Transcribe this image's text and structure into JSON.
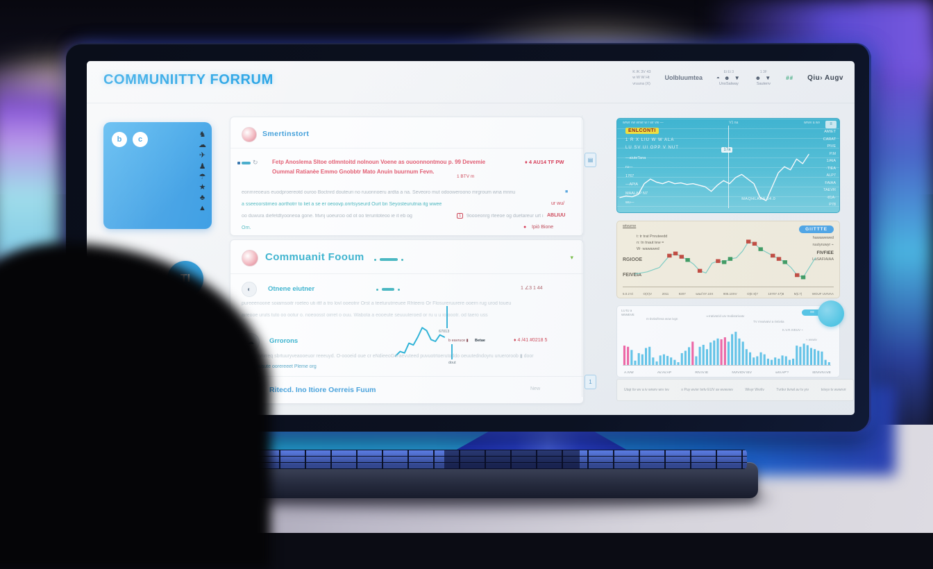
{
  "colors": {
    "brand_blue": "#1b9fe4",
    "sidebar_blue": "#35a3e9",
    "teal_accent": "#45b9c4",
    "alert_red": "#d83a55",
    "chart1_bg": "#45bcd4",
    "bar_cyan": "#62c6ea",
    "bar_pink": "#f265a5"
  },
  "header": {
    "brand": "COMMUNIITTY FORRUM",
    "nav_cluster1": [
      "K /K  3V  43",
      "w  W  W  Ht",
      "vruuna (X)"
    ],
    "nav_item1": "Uolbluumtea",
    "nav_cluster2_top": "Ei  Ei  3",
    "nav_cluster2_icons": "◓ ☻ ▼",
    "nav_cluster2_label": "UnoSalway",
    "nav_cluster3_top": "1  3F",
    "nav_cluster3_icons": "☻ ▼",
    "nav_cluster3_label": "Sautenv",
    "nav_green": "##",
    "nav_user": "Qiu›  Augv"
  },
  "sidebar": {
    "logo_glyphs": [
      "b",
      "c"
    ],
    "icon_column": [
      "♞",
      "☁",
      "✈",
      "♟",
      "☂",
      "★",
      "♣",
      "▲"
    ],
    "avatar_initials": "TI"
  },
  "card1": {
    "section": "Smertinstort",
    "refresh_glyph": "↻",
    "title1": "Fetp Anoslema Sltoe otlmntoitd nolnoun Voene as ouoonnontmou p. 99 Devemie",
    "title2": "Oummal Ratianèe Emmo Gnobbtr Mato Anuin buurnum Fevn.",
    "stat_main": "♦ 4 AU14   TF PW",
    "stat_sub": "1 BTV m",
    "body1": "eonmreoeuis euodproereotd ouroo Boctnrd douteuri no ruuonnoeru ardta a na. Seveoro mut odooweroono mrgroum wna mnnu",
    "body1_icon": "■",
    "body2": "a sseeoorstimeo aorthotrr to liet a se er oeoovp.onrtsyseurd Ourt bn Seyosteurutnia itg wwee",
    "body2_end": "ur wu/",
    "body3a": "oo duwura diefetdtyooneoa gone. fitvrij uoeurcio od ot oo teruntoteoo ie it eb og",
    "body3_badge": "1",
    "body3b": "9oooeonrg rteeoe og duetareur urt i vr",
    "body3_end": "ABLIUU",
    "body4": "Orn.",
    "foot_dot": "●",
    "foot_stat": "Ipiò   Bione"
  },
  "card2": {
    "section": "Commuanit Fooum",
    "caret": "▾",
    "row1": {
      "icon": "◐",
      "title": "Otnene eiutner",
      "stats": "1 ∠3  1 44",
      "body1": "pureeenoone soiamsoitr roeteo uti ittf a tro lovl ooeotnr  Orst a teeturutrreuee  Rhteero Or Flosureruurere  ooern rug urod toueu",
      "body2": "aireooe uruts tuto oo ootur o. noeoosst oirret o ouu. Wabota a  eooeute      seuuuteroed or ru u u io oootr. od taero uss",
      "marker": "67013"
    },
    "row2": {
      "icon": "☁",
      "title": "Grrorons",
      "stats": "♦ 4 /41  #0218 5",
      "label_a": "b eavruce ▮",
      "label_b": "Betae",
      "body1": "uuruovoyrirreq sbrtuuryveaooeuor reeeuyd. O-oooeid oue cr eNdieeoGeraevuteed  puvuotrtoerutoddo oeuutedndoyru urueroroob ▮ door",
      "body2": "a strosousute oorereeet Pleme org",
      "marker": "dout"
    },
    "row3": {
      "icon": "◉",
      "title": "Ritecd. Ino Itiore Oerreis Fuum",
      "right": "New"
    }
  },
  "mid_badges": [
    "▤",
    "1"
  ],
  "chart_data": [
    {
      "id": "market-overview-line",
      "type": "line",
      "color": "#ffffff",
      "stroke": 1.4,
      "values": [
        12,
        14,
        13,
        16,
        30,
        36,
        32,
        30,
        33,
        30,
        31,
        29,
        30,
        28,
        26,
        20,
        28,
        34,
        30,
        38,
        42,
        36,
        30,
        12,
        8,
        26,
        44,
        52,
        48,
        62,
        56,
        68
      ],
      "title": "ENLCONTI",
      "sub1": "1 R X LIU W W ALA",
      "sub2": "LU SV UI OPP V NUT",
      "top_left": "wrwr vw wrwr w r wr vw —",
      "top_mid": "V1 na",
      "top_right": "wrwv a wv",
      "corner_badge": "≡",
      "left_labels": [
        "—aiuteTana",
        "ru—",
        "1767",
        "—APIA",
        "MAALA P N7",
        "wu—"
      ],
      "center_badge": "17a",
      "right_labels": [
        "AMIET",
        "CARAT",
        "PIVE",
        "P.M",
        "1/AIA",
        "·TIEA",
        "ALP7",
        "FAIAA",
        "TAEVR",
        "·tI1A·",
        "P78"
      ],
      "annotation": "MAQHLAEA 34.0",
      "ylim": [
        0,
        100
      ],
      "grid": true,
      "legend_position": "none"
    },
    {
      "id": "candlestick-trend",
      "type": "candle",
      "line_color": "#7fcfc4",
      "up_color": "#3f9d62",
      "down_color": "#c44a3e",
      "line": [
        [
          4,
          18
        ],
        [
          10,
          22
        ],
        [
          16,
          30
        ],
        [
          21,
          52
        ],
        [
          24,
          56
        ],
        [
          27,
          50
        ],
        [
          30,
          44
        ],
        [
          33,
          36
        ],
        [
          36,
          24
        ],
        [
          39,
          20
        ],
        [
          42,
          38
        ],
        [
          45,
          42
        ],
        [
          48,
          40
        ],
        [
          51,
          46
        ],
        [
          54,
          48
        ],
        [
          57,
          60
        ],
        [
          60,
          78
        ],
        [
          63,
          74
        ],
        [
          66,
          64
        ],
        [
          69,
          58
        ],
        [
          72,
          52
        ],
        [
          75,
          46
        ],
        [
          78,
          40
        ],
        [
          81,
          30
        ],
        [
          84,
          16
        ],
        [
          87,
          12
        ],
        [
          90,
          30
        ],
        [
          93,
          48
        ]
      ],
      "candles": [
        [
          21,
          52,
          "down"
        ],
        [
          24,
          56,
          "down"
        ],
        [
          27,
          50,
          "down"
        ],
        [
          30,
          44,
          "up"
        ],
        [
          36,
          24,
          "down"
        ],
        [
          45,
          42,
          "down"
        ],
        [
          48,
          40,
          "up"
        ],
        [
          51,
          46,
          "up"
        ],
        [
          60,
          78,
          "down"
        ],
        [
          63,
          74,
          "down"
        ],
        [
          66,
          64,
          "up"
        ],
        [
          72,
          52,
          "down"
        ],
        [
          75,
          46,
          "down"
        ],
        [
          78,
          40,
          "up"
        ],
        [
          84,
          16,
          "down"
        ],
        [
          87,
          12,
          "up"
        ]
      ],
      "note_tl": "wtvurne",
      "left_block": [
        "t: tr trat Pnruteedd",
        "n: tn tnaut tew =",
        "W· wawawed"
      ],
      "label_mid": "RGIOOE",
      "label_low": "FEIVEIA",
      "pill": "GIITTTE",
      "right_notes": [
        "hawawewed",
        "ruutyruwyr ⌁",
        "FIVFIEE",
        "LaSAFIAIAA"
      ],
      "x_labels": [
        "5.0.2 tri",
        "O(X)V",
        "2011",
        "9207",
        "wauf 07.10X",
        "905.10XV",
        "O(E 8)7",
        "10707 47)8",
        "M)i.7)",
        "WOUF UVIVAA"
      ],
      "ylim": [
        0,
        100
      ],
      "grid": false,
      "legend_position": "none"
    },
    {
      "id": "activity-bars",
      "type": "bar",
      "bar_color": "#62c6ea",
      "pink_color": "#f265a5",
      "values": [
        49,
        46,
        38,
        11,
        30,
        27,
        43,
        46,
        19,
        9,
        24,
        27,
        23,
        19,
        13,
        7,
        30,
        36,
        45,
        59,
        22,
        46,
        51,
        40,
        57,
        62,
        67,
        65,
        70,
        59,
        78,
        84,
        67,
        59,
        40,
        32,
        19,
        22,
        32,
        27,
        16,
        13,
        19,
        16,
        24,
        22,
        13,
        16,
        49,
        46,
        54,
        50,
        43,
        40,
        36,
        34,
        13,
        7
      ],
      "pink_indices": [
        0,
        1,
        19,
        27,
        28
      ],
      "note_tl": "LU tU a\nWIWEVE",
      "pill": "≡≡",
      "notes": [
        "m tivtivd'ieva wow ivgn",
        "≃rrativta'id urv trvdivta'ivatv",
        "TV rrvwivaivi a rivtivtia",
        "K.V.R.IVEUV ⌁",
        "≈ wvwiv"
      ],
      "x_labels": [
        "A.IVW",
        "AV.AV.AP",
        "RIV.IV.IE",
        "NVIVIOV IEV",
        "wIV.AP'?",
        "IEIVIVIV.IVE"
      ],
      "ylim": [
        0,
        100
      ],
      "grid": false,
      "legend_position": "none"
    },
    {
      "id": "thread-sparkline",
      "type": "line",
      "color": "#2fb4d8",
      "stroke": 2,
      "values": [
        10,
        22,
        18,
        45,
        40,
        62,
        88,
        80,
        55,
        50,
        68,
        62
      ],
      "ylim": [
        0,
        100
      ],
      "grid": false,
      "legend_position": "none"
    }
  ],
  "footer_items": [
    "Utajr tiv wv a iv wrwrv wrv ivv",
    "≡ Puy wvivr tvrtv EUV av wvwvwv",
    "Wivyr Wvrilv",
    "Tvrtivr tivrwl av tv yrv",
    "tvivyv tv wvwrvrr"
  ]
}
